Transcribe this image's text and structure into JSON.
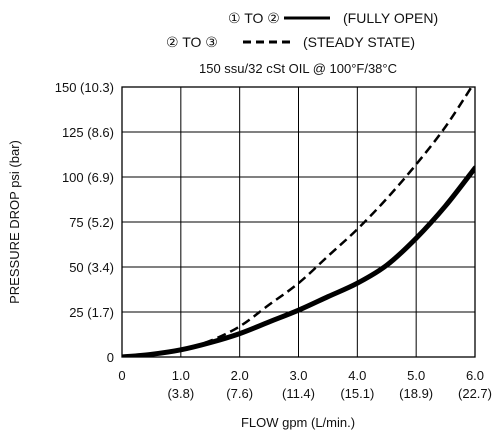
{
  "legend": {
    "entries": [
      {
        "label": "① TO ②",
        "desc": "(FULLY OPEN)",
        "style": "solid"
      },
      {
        "label": "② TO ③",
        "desc": "(STEADY STATE)",
        "style": "dashed"
      }
    ]
  },
  "chart_data": {
    "type": "line",
    "subtitle": "150 ssu/32 cSt OIL @ 100°F/38°C",
    "xlabel": "FLOW gpm (L/min.)",
    "ylabel": "PRESSURE DROP psi (bar)",
    "xlim": [
      0,
      6
    ],
    "ylim": [
      0,
      150
    ],
    "grid": true,
    "legend_position": "top-center",
    "x_ticks": [
      {
        "value": 0,
        "label": "0",
        "sub": ""
      },
      {
        "value": 1,
        "label": "1.0",
        "sub": "(3.8)"
      },
      {
        "value": 2,
        "label": "2.0",
        "sub": "(7.6)"
      },
      {
        "value": 3,
        "label": "3.0",
        "sub": "(11.4)"
      },
      {
        "value": 4,
        "label": "4.0",
        "sub": "(15.1)"
      },
      {
        "value": 5,
        "label": "5.0",
        "sub": "(18.9)"
      },
      {
        "value": 6,
        "label": "6.0",
        "sub": "(22.7)"
      }
    ],
    "y_ticks": [
      {
        "value": 0,
        "label": "0"
      },
      {
        "value": 25,
        "label": "25 (1.7)"
      },
      {
        "value": 50,
        "label": "50 (3.4)"
      },
      {
        "value": 75,
        "label": "75 (5.2)"
      },
      {
        "value": 100,
        "label": "100 (6.9)"
      },
      {
        "value": 125,
        "label": "125 (8.6)"
      },
      {
        "value": 150,
        "label": "150 (10.3)"
      }
    ],
    "series": [
      {
        "style": "solid",
        "color": "#000000",
        "x": [
          0,
          0.5,
          1.0,
          1.5,
          2.0,
          2.5,
          3.0,
          3.5,
          4.0,
          4.5,
          5.0,
          5.5,
          6.0
        ],
        "y": [
          0,
          1.5,
          4,
          8,
          13,
          19.5,
          26,
          33.5,
          41,
          51,
          66,
          84,
          105
        ]
      },
      {
        "style": "dashed",
        "color": "#000000",
        "x": [
          0,
          0.5,
          1.0,
          1.5,
          2.0,
          2.5,
          3.0,
          3.5,
          4.0,
          4.5,
          5.0,
          5.5,
          6.0
        ],
        "y": [
          0,
          1.5,
          4,
          9,
          17,
          29,
          41,
          56,
          71,
          88,
          107,
          128,
          153
        ]
      }
    ]
  }
}
